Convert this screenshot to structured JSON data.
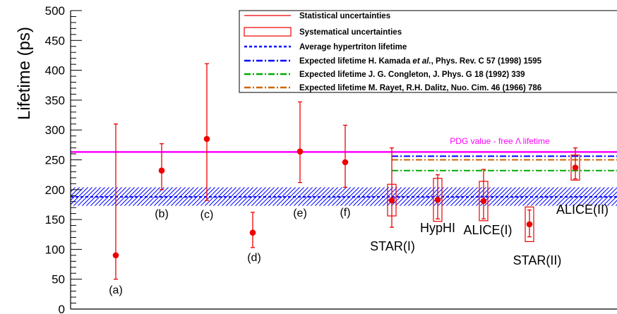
{
  "chart_data": {
    "type": "scatter",
    "title": "",
    "xlabel": "",
    "ylabel": "Lifetime (ps)",
    "ylim": [
      0,
      500
    ],
    "y_ticks": [
      0,
      50,
      100,
      150,
      200,
      250,
      300,
      350,
      400,
      450,
      500
    ],
    "grid": false,
    "legend_placement": "top-right",
    "colors": {
      "points": "#ee0000",
      "pdg_line": "#ff00ff",
      "average_line": "#0000ff",
      "kamada_line": "#0000ff",
      "congleton_line": "#00aa00",
      "rayet_line": "#cc6600"
    },
    "measurements": [
      {
        "label": "(a)",
        "value": 90,
        "stat_low": 50,
        "stat_high": 310
      },
      {
        "label": "(b)",
        "value": 232,
        "stat_low": 200,
        "stat_high": 277
      },
      {
        "label": "(c)",
        "value": 285,
        "stat_low": 182,
        "stat_high": 411
      },
      {
        "label": "(d)",
        "value": 128,
        "stat_low": 103,
        "stat_high": 162
      },
      {
        "label": "(e)",
        "value": 264,
        "stat_low": 212,
        "stat_high": 347
      },
      {
        "label": "(f)",
        "value": 246,
        "stat_low": 204,
        "stat_high": 308
      },
      {
        "label": "STAR(I)",
        "value": 182,
        "stat_low": 137,
        "stat_high": 270,
        "sys_low": 156,
        "sys_high": 209
      },
      {
        "label": "HypHI",
        "value": 183,
        "stat_low": 151,
        "stat_high": 225,
        "sys_low": 147,
        "sys_high": 219
      },
      {
        "label": "ALICE(I)",
        "value": 181,
        "stat_low": 151,
        "stat_high": 234,
        "sys_low": 148,
        "sys_high": 214
      },
      {
        "label": "STAR(II)",
        "value": 142,
        "stat_low": 121,
        "stat_high": 166,
        "sys_low": 113,
        "sys_high": 171
      },
      {
        "label": "ALICE(II)",
        "value": 237,
        "stat_low": 218,
        "stat_high": 270,
        "sys_low": 216,
        "sys_high": 258
      }
    ],
    "reference_lines": [
      {
        "name": "PDG value - free Λ lifetime",
        "value": 263.2
      },
      {
        "name": "Average hypertriton lifetime",
        "value": 188,
        "band": [
          173,
          204
        ]
      },
      {
        "name": "Expected lifetime H. Kamada",
        "value": 256
      },
      {
        "name": "Expected lifetime J. G. Congleton",
        "value": 232
      },
      {
        "name": "Expected lifetime M. Rayet",
        "value": 250
      }
    ],
    "legend": [
      {
        "style": "stat",
        "label": "Statistical uncertainties"
      },
      {
        "style": "sys",
        "label": "Systematical uncertainties"
      },
      {
        "style": "avg",
        "label": "Average hypertriton lifetime"
      },
      {
        "style": "kamada",
        "label_pre": "Expected lifetime H. Kamada ",
        "label_italic": "et al.",
        "label_post": ", Phys. Rev. C 57 (1998) 1595"
      },
      {
        "style": "congleton",
        "label": "Expected lifetime J. G. Congleton, J. Phys. G 18 (1992) 339"
      },
      {
        "style": "rayet",
        "label": "Expected lifetime M. Rayet, R.H. Dalitz, Nuo. Cim. 46 (1966) 786"
      }
    ]
  }
}
